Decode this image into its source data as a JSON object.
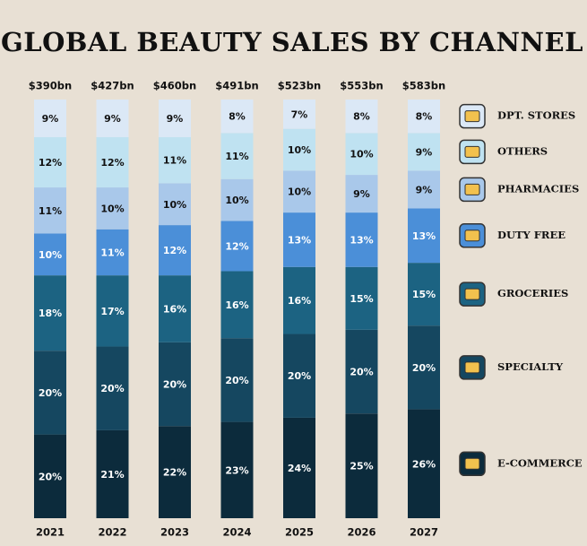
{
  "chart_data": {
    "type": "stacked_bar_100",
    "title": "GLOBAL BEAUTY SALES BY CHANNEL",
    "categories": [
      "2021",
      "2022",
      "2023",
      "2024",
      "2025",
      "2026",
      "2027"
    ],
    "totals": {
      "values": [
        390,
        427,
        460,
        491,
        523,
        553,
        583
      ],
      "value_labels": [
        "$390bn",
        "$427bn",
        "$460bn",
        "$491bn",
        "$523bn",
        "$553bn",
        "$583bn"
      ]
    },
    "series": [
      {
        "name": "E-COMMERCE",
        "color": "#0c2b3c",
        "values": [
          20,
          21,
          22,
          23,
          24,
          25,
          26
        ],
        "value_labels": [
          "20%",
          "21%",
          "22%",
          "23%",
          "24%",
          "25%",
          "26%"
        ]
      },
      {
        "name": "SPECIALTY",
        "color": "#154760",
        "values": [
          20,
          20,
          20,
          20,
          20,
          20,
          20
        ],
        "value_labels": [
          "20%",
          "20%",
          "20%",
          "20%",
          "20%",
          "20%",
          "20%"
        ]
      },
      {
        "name": "GROCERIES",
        "color": "#1c6382",
        "values": [
          18,
          17,
          16,
          16,
          16,
          15,
          15
        ],
        "value_labels": [
          "18%",
          "17%",
          "16%",
          "16%",
          "16%",
          "15%",
          "15%"
        ]
      },
      {
        "name": "DUTY FREE",
        "color": "#4b8fd8",
        "values": [
          10,
          11,
          12,
          12,
          13,
          13,
          13
        ],
        "value_labels": [
          "10%",
          "11%",
          "12%",
          "12%",
          "13%",
          "13%",
          "13%"
        ]
      },
      {
        "name": "PHARMACIES",
        "color": "#a9c8ea",
        "values": [
          11,
          10,
          10,
          10,
          10,
          9,
          9
        ],
        "value_labels": [
          "11%",
          "10%",
          "10%",
          "10%",
          "10%",
          "9%",
          "9%"
        ]
      },
      {
        "name": "OTHERS",
        "color": "#bfe2f1",
        "values": [
          12,
          12,
          11,
          11,
          10,
          10,
          9
        ],
        "value_labels": [
          "12%",
          "12%",
          "11%",
          "11%",
          "10%",
          "10%",
          "9%"
        ]
      },
      {
        "name": "DPT. STORES",
        "color": "#dbe8f6",
        "values": [
          9,
          9,
          9,
          8,
          7,
          8,
          8
        ],
        "value_labels": [
          "9%",
          "9%",
          "9%",
          "8%",
          "7%",
          "8%",
          "8%"
        ]
      }
    ]
  }
}
